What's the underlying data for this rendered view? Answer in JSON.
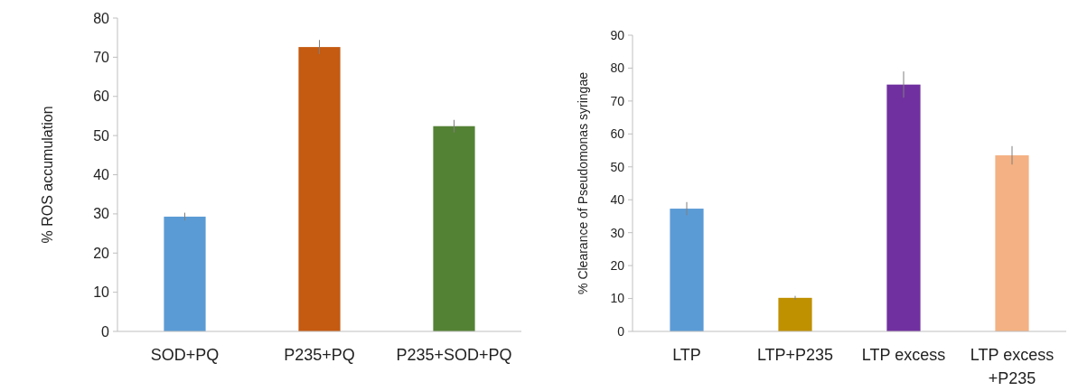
{
  "chart_data": [
    {
      "type": "bar",
      "ylabel": "% ROS accumulation",
      "categories": [
        "SOD+PQ",
        "P235+PQ",
        "P235+SOD+PQ"
      ],
      "values": [
        29.3,
        72.6,
        52.4
      ],
      "errors": [
        1,
        1.8,
        1.6
      ],
      "colors": [
        "#5b9bd5",
        "#c55a11",
        "#548235"
      ],
      "ylim": [
        0,
        80
      ],
      "yticks": [
        0,
        10,
        20,
        30,
        40,
        50,
        60,
        70,
        80
      ],
      "grid": false
    },
    {
      "type": "bar",
      "ylabel": "% Clearance of Pseudomonas syringae",
      "categories": [
        "LTP",
        "LTP+P235",
        "LTP excess",
        "LTP excess +P235"
      ],
      "values": [
        37.3,
        10.2,
        75,
        53.5
      ],
      "errors": [
        2,
        0.6,
        4,
        2.8
      ],
      "colors": [
        "#5b9bd5",
        "#bf9000",
        "#7030a0",
        "#f4b183"
      ],
      "ylim": [
        0,
        90
      ],
      "yticks": [
        0,
        10,
        20,
        30,
        40,
        50,
        60,
        70,
        80,
        90
      ],
      "grid": false
    }
  ]
}
